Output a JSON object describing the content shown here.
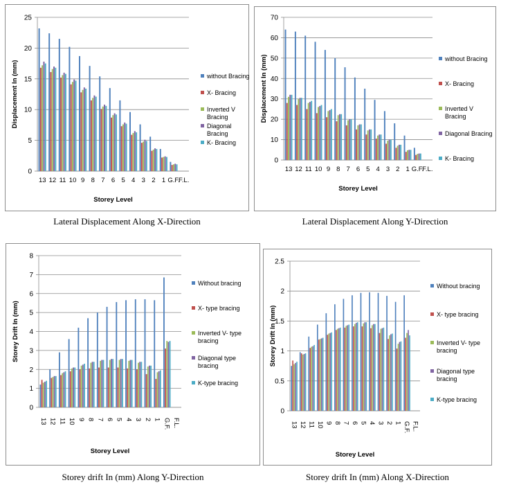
{
  "captions": [
    "Lateral Displacement Along X-Direction",
    "Lateral Displacement Along Y-Direction",
    "Storey drift In (mm) Along Y-Direction",
    "Storey drift In (mm) Along X-Direction"
  ],
  "colors": [
    "#4f81bd",
    "#c0504d",
    "#9bbb59",
    "#8064a2",
    "#4bacc6"
  ],
  "chart_data": [
    {
      "type": "bar",
      "xlabel": "Storey Level",
      "ylabel": "Displacement In (mm)",
      "ylim": [
        0,
        25
      ],
      "yticks": [
        0,
        5,
        10,
        15,
        20,
        25
      ],
      "grid": true,
      "legend_position": "right",
      "categories": [
        "13",
        "12",
        "11",
        "10",
        "9",
        "8",
        "7",
        "6",
        "5",
        "4",
        "3",
        "2",
        "1",
        "G.F.",
        "F.L."
      ],
      "series": [
        {
          "name": "without Bracing",
          "values": [
            23.2,
            22.4,
            21.5,
            20.2,
            18.7,
            17.1,
            15.4,
            13.5,
            11.5,
            9.6,
            7.6,
            5.6,
            3.6,
            1.5,
            0
          ]
        },
        {
          "name": "X- Bracing",
          "values": [
            16.8,
            16.1,
            15.2,
            14.1,
            12.8,
            11.5,
            10.1,
            8.7,
            7.3,
            5.9,
            4.6,
            3.3,
            2.2,
            1.0,
            0
          ]
        },
        {
          "name": "Inverted V Bracing",
          "values": [
            17.2,
            16.6,
            15.6,
            14.5,
            13.2,
            11.9,
            10.5,
            9.1,
            7.6,
            6.2,
            4.8,
            3.5,
            2.3,
            1.1,
            0
          ]
        },
        {
          "name": "Diagonal Bracing",
          "values": [
            17.8,
            17.0,
            16.0,
            14.9,
            13.6,
            12.3,
            10.8,
            9.4,
            7.9,
            6.5,
            5.1,
            3.7,
            2.4,
            1.2,
            0
          ]
        },
        {
          "name": "K- Bracing",
          "values": [
            17.5,
            16.8,
            15.8,
            14.7,
            13.4,
            12.1,
            10.6,
            9.2,
            7.7,
            6.3,
            4.9,
            3.6,
            2.3,
            1.1,
            0
          ]
        }
      ]
    },
    {
      "type": "bar",
      "xlabel": "Storey Level",
      "ylabel": "Displacement In (mm)",
      "ylim": [
        0,
        70
      ],
      "yticks": [
        0,
        10,
        20,
        30,
        40,
        50,
        60,
        70
      ],
      "grid": true,
      "legend_position": "right",
      "categories": [
        "13",
        "12",
        "11",
        "10",
        "9",
        "8",
        "7",
        "6",
        "5",
        "4",
        "3",
        "2",
        "1",
        "G.F.",
        "F.L."
      ],
      "series": [
        {
          "name": "without Bracing",
          "values": [
            64,
            63,
            61,
            58,
            54,
            50,
            45.5,
            40.5,
            35,
            29.5,
            24,
            18,
            12,
            6,
            0
          ]
        },
        {
          "name": "X- Bracing",
          "values": [
            28,
            27,
            25,
            23,
            21,
            19,
            17,
            15,
            12.5,
            10.5,
            8,
            6,
            4,
            2.5,
            0
          ]
        },
        {
          "name": "Inverted V Bracing",
          "values": [
            31,
            30,
            28,
            26,
            24,
            22,
            19.5,
            17,
            14.5,
            12,
            9.5,
            7,
            4.8,
            3,
            0
          ]
        },
        {
          "name": "Diagonal Bracing",
          "values": [
            32,
            30.5,
            28.5,
            26.5,
            24.5,
            22.5,
            20,
            17.5,
            15,
            12.5,
            10,
            7.5,
            5,
            3.2,
            0
          ]
        },
        {
          "name": "K- Bracing",
          "values": [
            32,
            30.5,
            29,
            27,
            25,
            22.5,
            20,
            17.5,
            15,
            12.5,
            10,
            7.5,
            5,
            3.2,
            0
          ]
        }
      ]
    },
    {
      "type": "bar",
      "xlabel": "Storey Level",
      "ylabel": "Storey Drift In (mm)",
      "ylim": [
        0,
        8
      ],
      "yticks": [
        0,
        1,
        2,
        3,
        4,
        5,
        6,
        7,
        8
      ],
      "grid": true,
      "legend_position": "right",
      "categories": [
        "13",
        "12",
        "11",
        "10",
        "9",
        "8",
        "7",
        "6",
        "5",
        "4",
        "3",
        "2",
        "1",
        "G.F.",
        "F.L."
      ],
      "series": [
        {
          "name": "Without bracing",
          "values": [
            1.2,
            2.0,
            2.9,
            3.6,
            4.2,
            4.7,
            5.0,
            5.3,
            5.55,
            5.65,
            5.7,
            5.7,
            5.65,
            6.85,
            0
          ]
        },
        {
          "name": "X- type bracing",
          "values": [
            1.45,
            1.55,
            1.7,
            1.9,
            2.0,
            2.05,
            2.1,
            2.1,
            2.1,
            2.05,
            2.0,
            1.75,
            1.5,
            3.1,
            0
          ]
        },
        {
          "name": "Inverted V- type bracing",
          "values": [
            1.3,
            1.6,
            1.8,
            2.05,
            2.2,
            2.35,
            2.45,
            2.5,
            2.5,
            2.45,
            2.35,
            2.15,
            1.85,
            3.5,
            0
          ]
        },
        {
          "name": "Diagonal type bracing",
          "values": [
            1.35,
            1.65,
            1.85,
            2.1,
            2.25,
            2.4,
            2.5,
            2.55,
            2.55,
            2.5,
            2.4,
            2.2,
            1.9,
            3.45,
            0
          ]
        },
        {
          "name": "K-type bracing",
          "values": [
            1.4,
            1.65,
            1.9,
            2.1,
            2.3,
            2.4,
            2.5,
            2.55,
            2.55,
            2.5,
            2.4,
            2.2,
            1.95,
            3.5,
            0
          ]
        }
      ]
    },
    {
      "type": "bar",
      "xlabel": "Storey Level",
      "ylabel": "Storey Drift In (mm)",
      "ylim": [
        0,
        2.5
      ],
      "yticks": [
        "0",
        "0.5",
        "1",
        "1.5",
        "2",
        "2.5"
      ],
      "grid": true,
      "legend_position": "right",
      "categories": [
        "13",
        "12",
        "11",
        "10",
        "9",
        "8",
        "7",
        "6",
        "5",
        "4",
        "3",
        "2",
        "1",
        "G.F.",
        "F.L."
      ],
      "series": [
        {
          "name": "Without bracing",
          "values": [
            0.75,
            0.98,
            1.24,
            1.44,
            1.63,
            1.78,
            1.87,
            1.93,
            1.97,
            1.98,
            1.97,
            1.92,
            1.82,
            1.93,
            0
          ]
        },
        {
          "name": "X- type bracing",
          "values": [
            0.84,
            0.96,
            1.05,
            1.19,
            1.27,
            1.35,
            1.39,
            1.41,
            1.41,
            1.38,
            1.3,
            1.2,
            1.04,
            1.22,
            0
          ]
        },
        {
          "name": "Inverted V- type bracing",
          "values": [
            0.78,
            0.94,
            1.07,
            1.2,
            1.29,
            1.37,
            1.42,
            1.45,
            1.46,
            1.43,
            1.37,
            1.26,
            1.12,
            1.3,
            0
          ]
        },
        {
          "name": "Diagonal type bracing",
          "values": [
            0.8,
            0.95,
            1.08,
            1.21,
            1.3,
            1.38,
            1.43,
            1.47,
            1.48,
            1.45,
            1.38,
            1.28,
            1.15,
            1.35,
            0
          ]
        },
        {
          "name": "K-type bracing",
          "values": [
            0.82,
            0.96,
            1.1,
            1.22,
            1.31,
            1.39,
            1.44,
            1.48,
            1.48,
            1.45,
            1.39,
            1.29,
            1.16,
            1.26,
            0
          ]
        }
      ]
    }
  ]
}
